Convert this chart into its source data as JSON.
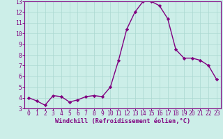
{
  "x": [
    0,
    1,
    2,
    3,
    4,
    5,
    6,
    7,
    8,
    9,
    10,
    11,
    12,
    13,
    14,
    15,
    16,
    17,
    18,
    19,
    20,
    21,
    22,
    23
  ],
  "y": [
    4.0,
    3.7,
    3.3,
    4.2,
    4.1,
    3.6,
    3.8,
    4.1,
    4.2,
    4.1,
    5.0,
    7.5,
    10.4,
    12.0,
    13.0,
    13.0,
    12.6,
    11.4,
    8.5,
    7.7,
    7.7,
    7.5,
    7.0,
    5.7
  ],
  "line_color": "#800080",
  "marker": "D",
  "marker_size": 2.2,
  "background_color": "#cceee8",
  "grid_color": "#aad8d0",
  "xlabel": "Windchill (Refroidissement éolien,°C)",
  "xlim": [
    -0.5,
    23.5
  ],
  "ylim": [
    3,
    13
  ],
  "yticks": [
    3,
    4,
    5,
    6,
    7,
    8,
    9,
    10,
    11,
    12,
    13
  ],
  "xticks": [
    0,
    1,
    2,
    3,
    4,
    5,
    6,
    7,
    8,
    9,
    10,
    11,
    12,
    13,
    14,
    15,
    16,
    17,
    18,
    19,
    20,
    21,
    22,
    23
  ],
  "tick_color": "#800080",
  "label_color": "#800080",
  "font_size": 5.8,
  "xlabel_font_size": 6.2,
  "line_width": 1.0
}
